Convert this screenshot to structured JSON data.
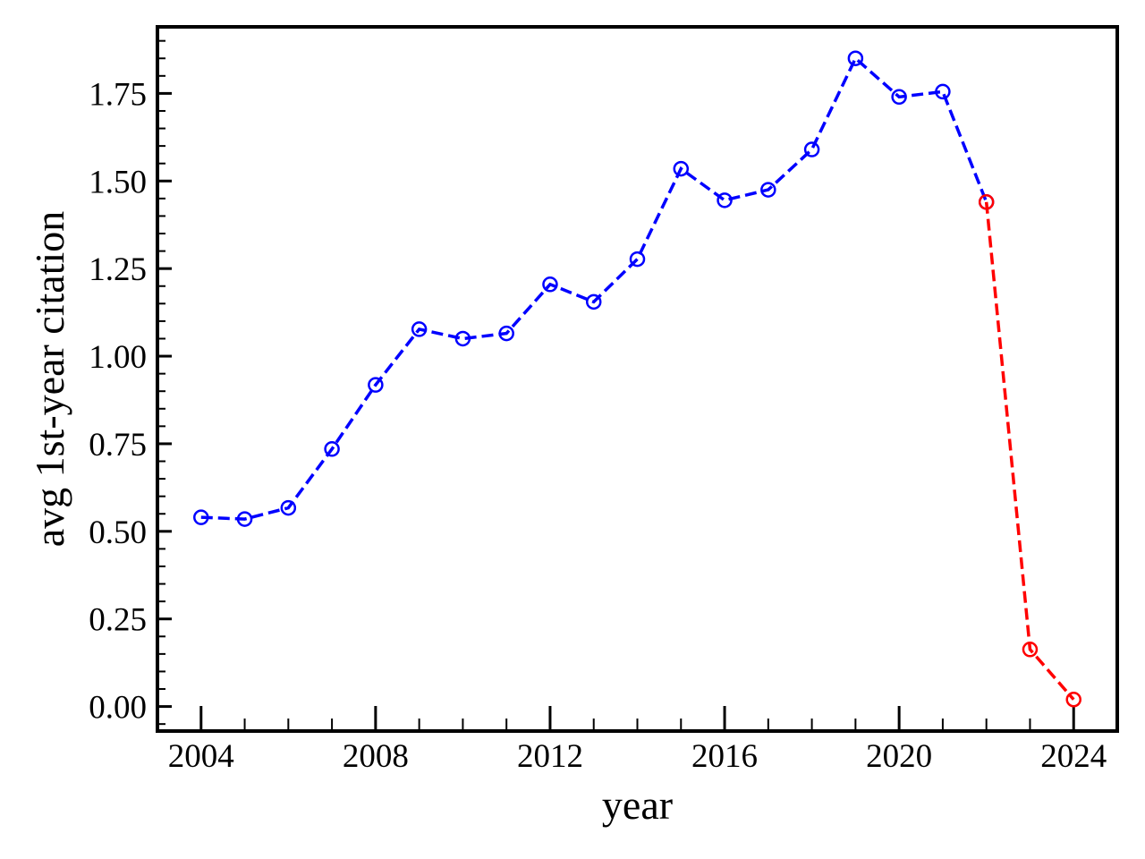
{
  "chart_data": {
    "type": "line",
    "title": "",
    "xlabel": "year",
    "ylabel": "avg 1st-year citation",
    "xlim": [
      2003,
      2025
    ],
    "ylim": [
      -0.07,
      1.94
    ],
    "x_major_ticks": [
      2004,
      2008,
      2012,
      2016,
      2020,
      2024
    ],
    "x_minor_ticks": [
      2005,
      2006,
      2007,
      2009,
      2010,
      2011,
      2013,
      2014,
      2015,
      2017,
      2018,
      2019,
      2021,
      2022,
      2023
    ],
    "y_major_ticks": [
      0.0,
      0.25,
      0.5,
      0.75,
      1.0,
      1.25,
      1.5,
      1.75
    ],
    "y_tick_labels": [
      "0.00",
      "0.25",
      "0.50",
      "0.75",
      "1.00",
      "1.25",
      "1.50",
      "1.75"
    ],
    "x_tick_labels": [
      "2004",
      "2008",
      "2012",
      "2016",
      "2020",
      "2024"
    ],
    "grid": false,
    "legend": "none",
    "series": [
      {
        "color": "#0000ff",
        "line_style": "dashed",
        "marker": "open-circle",
        "x": [
          2004,
          2005,
          2006,
          2007,
          2008,
          2009,
          2010,
          2011,
          2012,
          2013,
          2014,
          2015,
          2016,
          2017,
          2018,
          2019,
          2020,
          2021,
          2022
        ],
        "y": [
          0.54,
          0.535,
          0.567,
          0.735,
          0.918,
          1.077,
          1.05,
          1.065,
          1.205,
          1.155,
          1.277,
          1.535,
          1.445,
          1.475,
          1.59,
          1.85,
          1.74,
          1.755,
          1.44
        ]
      },
      {
        "color": "#ff0000",
        "line_style": "dashed",
        "marker": "open-circle",
        "x": [
          2022,
          2023,
          2024
        ],
        "y": [
          1.44,
          0.163,
          0.02
        ]
      }
    ]
  }
}
